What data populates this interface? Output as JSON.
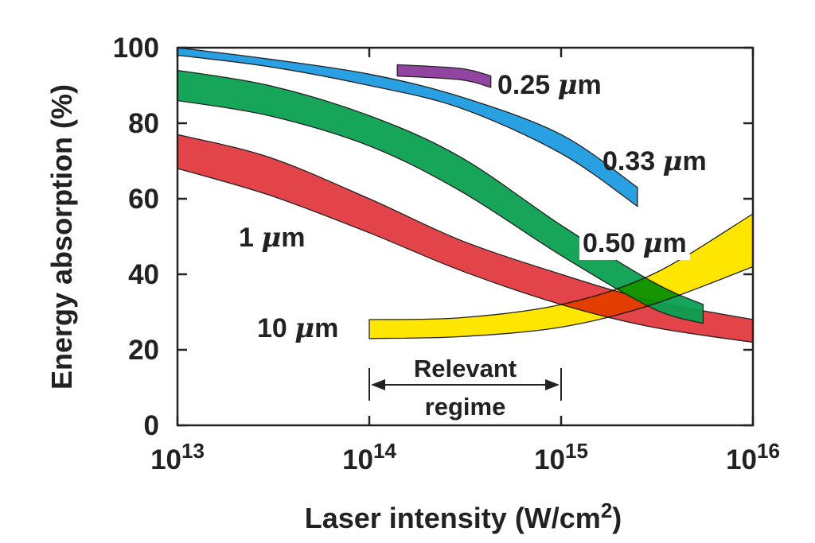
{
  "chart_data": {
    "type": "area",
    "title": "",
    "xlabel": "Laser intensity (W/cm",
    "xlabel_sup": "2",
    "xlabel_end": ")",
    "ylabel": "Energy absorption (%)",
    "x_scale": "log",
    "xlim": [
      10000000000000.0,
      1e+16
    ],
    "ylim": [
      0,
      100
    ],
    "x_ticks": [
      {
        "value": 10000000000000.0,
        "base": "10",
        "exp": "13"
      },
      {
        "value": 100000000000000.0,
        "base": "10",
        "exp": "14"
      },
      {
        "value": 1000000000000000.0,
        "base": "10",
        "exp": "15"
      },
      {
        "value": 1e+16,
        "base": "10",
        "exp": "16"
      }
    ],
    "y_ticks": [
      0,
      20,
      40,
      60,
      80,
      100
    ],
    "y_tick_labels": [
      "0",
      "20",
      "40",
      "60",
      "80",
      "100"
    ],
    "grid": false,
    "series": [
      {
        "name": "1 μm",
        "label_pre": "1 ",
        "label_mu": "μ",
        "label_post": "m",
        "color": "#e23a3f",
        "x": [
          10000000000000.0,
          30000000000000.0,
          100000000000000.0,
          300000000000000.0,
          1000000000000000.0,
          3000000000000000.0,
          1e+16
        ],
        "upper": [
          77,
          71,
          60,
          49,
          40,
          33,
          28
        ],
        "lower": [
          68,
          61,
          51,
          41,
          32,
          26,
          22
        ]
      },
      {
        "name": "0.50 μm",
        "label_pre": "0.50 ",
        "label_mu": "μ",
        "label_post": "m",
        "color": "#0aa050",
        "x": [
          10000000000000.0,
          30000000000000.0,
          100000000000000.0,
          300000000000000.0,
          1000000000000000.0,
          3000000000000000.0,
          5500000000000000.0
        ],
        "upper": [
          94,
          90,
          82,
          71,
          53,
          38,
          32
        ],
        "lower": [
          86,
          82,
          74,
          62,
          45,
          31,
          27
        ]
      },
      {
        "name": "0.33 μm",
        "label_pre": "0.33 ",
        "label_mu": "μ",
        "label_post": "m",
        "color": "#1e9be0",
        "x": [
          10000000000000.0,
          30000000000000.0,
          100000000000000.0,
          300000000000000.0,
          1000000000000000.0,
          2500000000000000.0
        ],
        "upper": [
          100,
          97,
          93,
          87,
          77,
          63
        ],
        "lower": [
          98,
          95,
          90,
          84,
          72,
          58
        ]
      },
      {
        "name": "0.25 μm",
        "label_pre": "0.25 ",
        "label_mu": "μ",
        "label_post": "m",
        "color": "#8b3a9b",
        "x": [
          140000000000000.0,
          300000000000000.0,
          430000000000000.0
        ],
        "upper": [
          95.5,
          94.5,
          92.5
        ],
        "lower": [
          92.5,
          91.5,
          89.5
        ]
      },
      {
        "name": "10 μm",
        "label_pre": "10 ",
        "label_mu": "μ",
        "label_post": "m",
        "color": "#ffe600",
        "x": [
          100000000000000.0,
          300000000000000.0,
          1000000000000000.0,
          3000000000000000.0,
          1e+16
        ],
        "upper": [
          28,
          28.5,
          32,
          40,
          56
        ],
        "lower": [
          23,
          23.5,
          26,
          32,
          42
        ]
      }
    ],
    "annotations": [
      {
        "text_line1": "Relevant",
        "text_line2": "regime",
        "x_range": [
          100000000000000.0,
          1000000000000000.0
        ],
        "arrow": "double"
      }
    ]
  }
}
